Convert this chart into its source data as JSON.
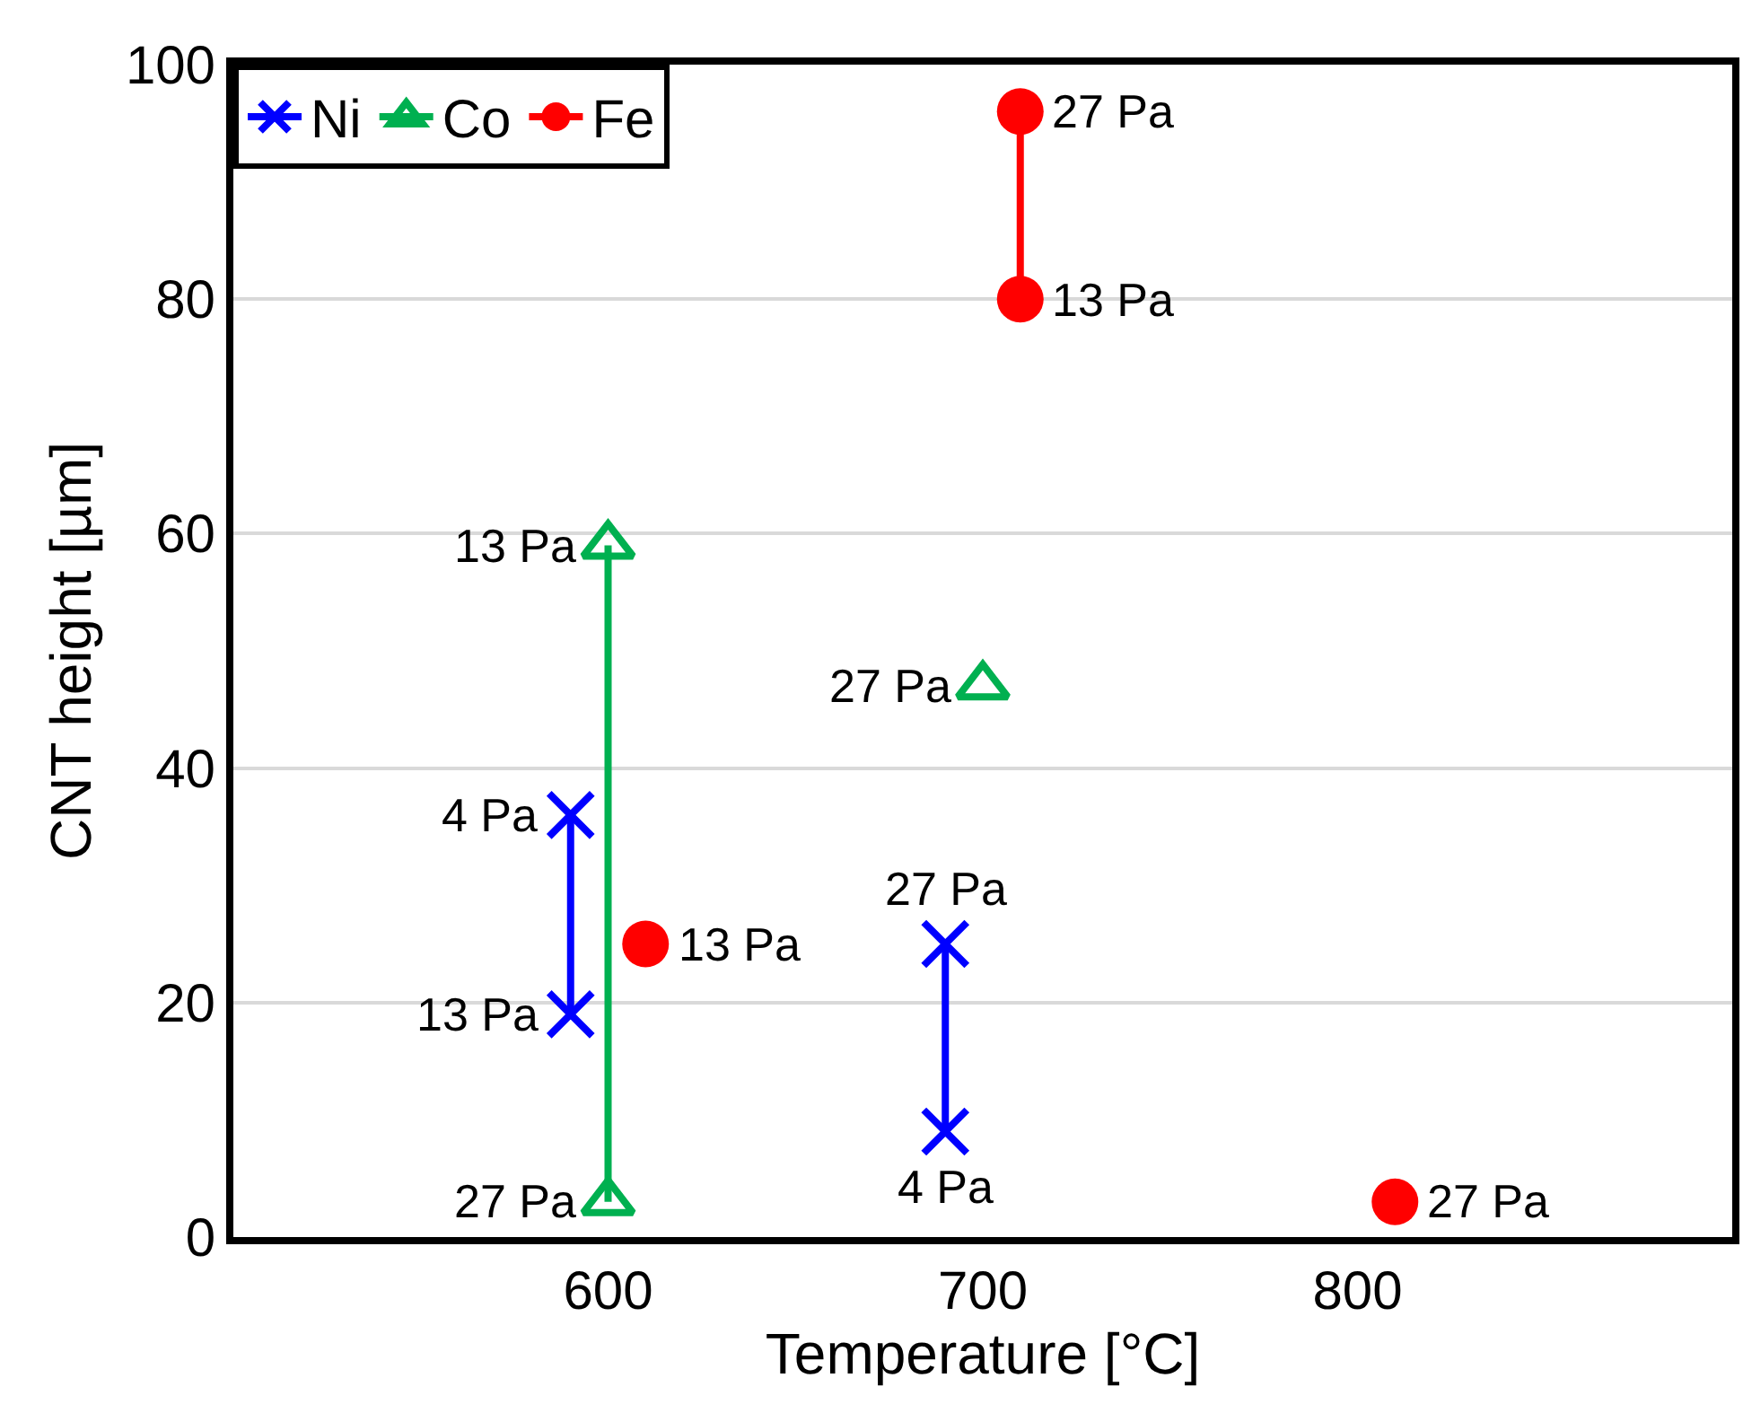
{
  "chart_data": {
    "type": "line",
    "xlabel": "Temperature [°C]",
    "ylabel": "CNT height [µm]",
    "xlim": [
      500,
      900
    ],
    "xticks": [
      600,
      700,
      800
    ],
    "ylim": [
      0,
      100
    ],
    "yticks": [
      0,
      20,
      40,
      60,
      80,
      100
    ],
    "grid": "y",
    "legend": "top left",
    "series": [
      {
        "name": "Ni",
        "color": "#0000ff",
        "marker": "cross",
        "x": [
          590,
          590,
          null,
          690,
          690
        ],
        "values": [
          36,
          19,
          null,
          25,
          9
        ]
      },
      {
        "name": "Co",
        "color": "#00b050",
        "marker": "triangle",
        "x": [
          600,
          600,
          null,
          700
        ],
        "values": [
          59,
          3,
          null,
          47
        ]
      },
      {
        "name": "Fe",
        "color": "#ff0000",
        "marker": "circle",
        "x": [
          710,
          710,
          null,
          610,
          null,
          810
        ],
        "values": [
          96,
          80,
          null,
          25,
          null,
          3
        ]
      }
    ],
    "annotations": [
      {
        "text": "4 Pa",
        "x": 590,
        "y": 36
      },
      {
        "text": "13 Pa",
        "x": 590,
        "y": 19
      },
      {
        "text": "27 Pa",
        "x": 690,
        "y": 25
      },
      {
        "text": "4 Pa",
        "x": 690,
        "y": 9
      },
      {
        "text": "13 Pa",
        "x": 600,
        "y": 59
      },
      {
        "text": "27 Pa",
        "x": 600,
        "y": 3
      },
      {
        "text": "27 Pa",
        "x": 700,
        "y": 47
      },
      {
        "text": "27 Pa",
        "x": 710,
        "y": 96
      },
      {
        "text": "13 Pa",
        "x": 710,
        "y": 80
      },
      {
        "text": "13 Pa",
        "x": 610,
        "y": 25
      },
      {
        "text": "27 Pa",
        "x": 810,
        "y": 3
      }
    ]
  }
}
